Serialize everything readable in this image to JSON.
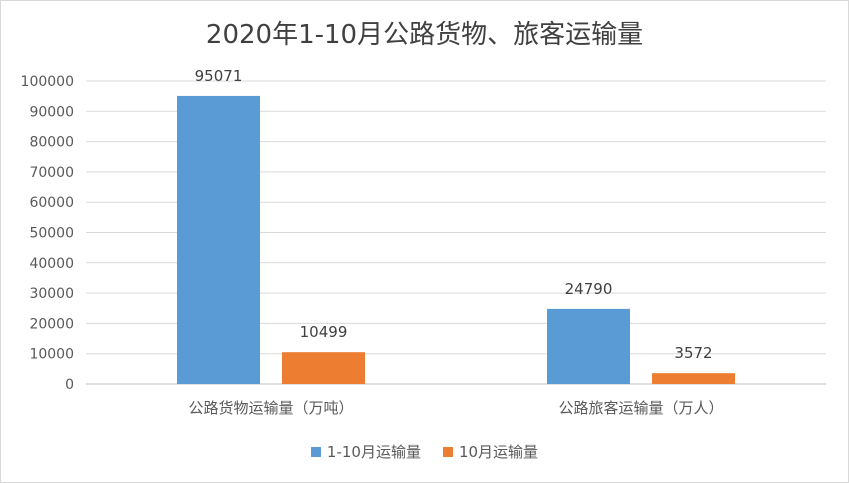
{
  "chart_data": {
    "type": "bar",
    "title": "2020年1-10月公路货物、旅客运输量",
    "categories": [
      "公路货物运输量（万吨）",
      "公路旅客运输量（万人）"
    ],
    "series": [
      {
        "name": "1-10月运输量",
        "values": [
          95071,
          24790
        ],
        "color": "#5b9bd5"
      },
      {
        "name": "10月运输量",
        "values": [
          10499,
          3572
        ],
        "color": "#ed7d31"
      }
    ],
    "ylim": [
      0,
      100000
    ],
    "yticks": [
      0,
      10000,
      20000,
      30000,
      40000,
      50000,
      60000,
      70000,
      80000,
      90000,
      100000
    ],
    "grid": true,
    "legend_position": "bottom"
  }
}
